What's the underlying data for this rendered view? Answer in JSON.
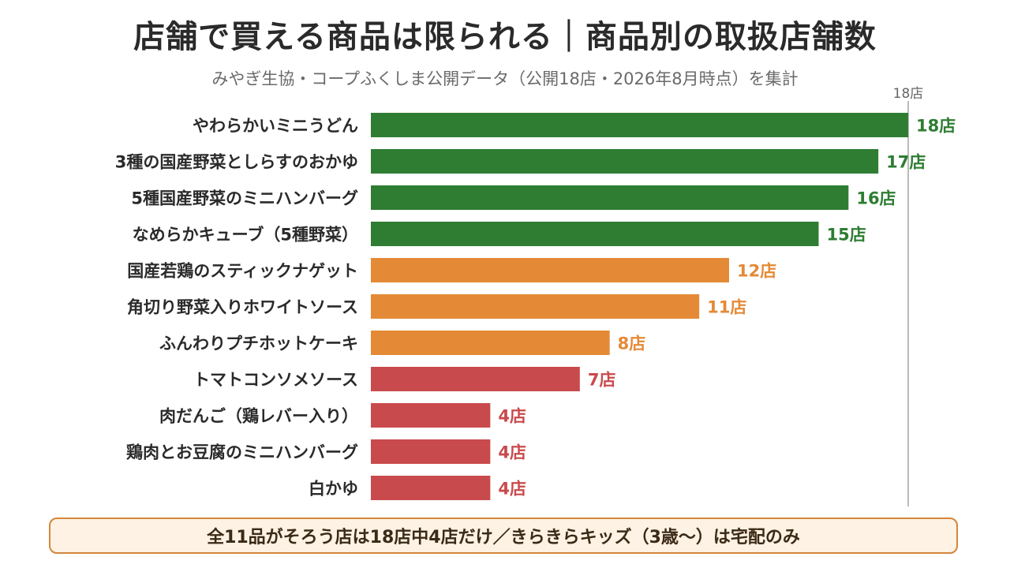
{
  "title": "店舗で買える商品は限られる｜商品別の取扱店舗数",
  "subtitle": "みやぎ生協・コープふくしま公開データ（公開18店・2026年8月時点）を集計",
  "footer_note": "全11品がそろう店は18店中4店だけ／きらきらキッズ（3歳〜）は宅配のみ",
  "colors": {
    "high": "#2e7d32",
    "mid": "#e48a36",
    "low": "#c94a4c",
    "reference_line": "#bbbbbb"
  },
  "chart_data": {
    "type": "bar",
    "orientation": "horizontal",
    "value_suffix": "店",
    "xlim": [
      0,
      18
    ],
    "reference_line": {
      "value": 18,
      "label": "18店"
    },
    "grid": false,
    "categories": [
      "やわらかいミニうどん",
      "3種の国産野菜としらすのおかゆ",
      "5種国産野菜のミニハンバーグ",
      "なめらかキューブ（5種野菜）",
      "国産若鶏のスティックナゲット",
      "角切り野菜入りホワイトソース",
      "ふんわりプチホットケーキ",
      "トマトコンソメソース",
      "肉だんご（鶏レバー入り）",
      "鶏肉とお豆腐のミニハンバーグ",
      "白かゆ"
    ],
    "values": [
      18,
      17,
      16,
      15,
      12,
      11,
      8,
      7,
      4,
      4,
      4
    ],
    "value_labels": [
      "18店",
      "17店",
      "16店",
      "15店",
      "12店",
      "11店",
      "8店",
      "7店",
      "4店",
      "4店",
      "4店"
    ],
    "bar_color_groups": [
      "high",
      "high",
      "high",
      "high",
      "mid",
      "mid",
      "mid",
      "low",
      "low",
      "low",
      "low"
    ]
  }
}
